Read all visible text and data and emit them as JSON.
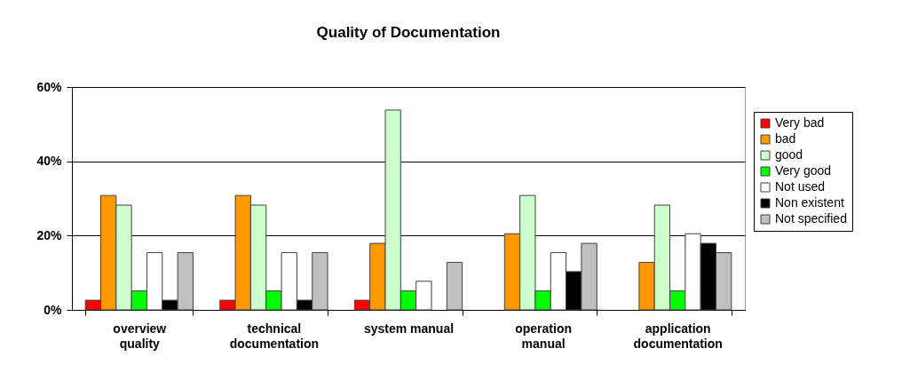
{
  "chart_data": {
    "type": "bar",
    "title": "Quality of Documentation",
    "categories": [
      "overview quality",
      "technical documentation",
      "system manual",
      "operation manual",
      "application documentation"
    ],
    "series": [
      {
        "name": "Very bad",
        "color": "#ff0000",
        "values": [
          2.6,
          2.6,
          2.6,
          null,
          null
        ]
      },
      {
        "name": "bad",
        "color": "#ff9900",
        "values": [
          30.8,
          30.8,
          17.9,
          20.5,
          12.8
        ]
      },
      {
        "name": "good",
        "color": "#ccffcc",
        "values": [
          28.2,
          28.2,
          53.8,
          30.8,
          28.2
        ]
      },
      {
        "name": "Very good",
        "color": "#00ff00",
        "values": [
          5.1,
          5.1,
          5.1,
          5.1,
          5.1
        ]
      },
      {
        "name": "Not used",
        "color": "#ffffff",
        "values": [
          15.4,
          15.4,
          7.7,
          15.4,
          20.5
        ]
      },
      {
        "name": "Non existent",
        "color": "#000000",
        "values": [
          2.6,
          2.6,
          null,
          10.3,
          17.9
        ]
      },
      {
        "name": "Not specified",
        "color": "#c0c0c0",
        "values": [
          15.4,
          15.4,
          12.8,
          17.9,
          15.4
        ]
      }
    ],
    "ylim": [
      0,
      60
    ],
    "yticks": [
      {
        "value": 0,
        "label": "0%"
      },
      {
        "value": 20,
        "label": "20%"
      },
      {
        "value": 40,
        "label": "40%"
      },
      {
        "value": 60,
        "label": "60%"
      }
    ],
    "grid": "y",
    "legend": "right"
  }
}
